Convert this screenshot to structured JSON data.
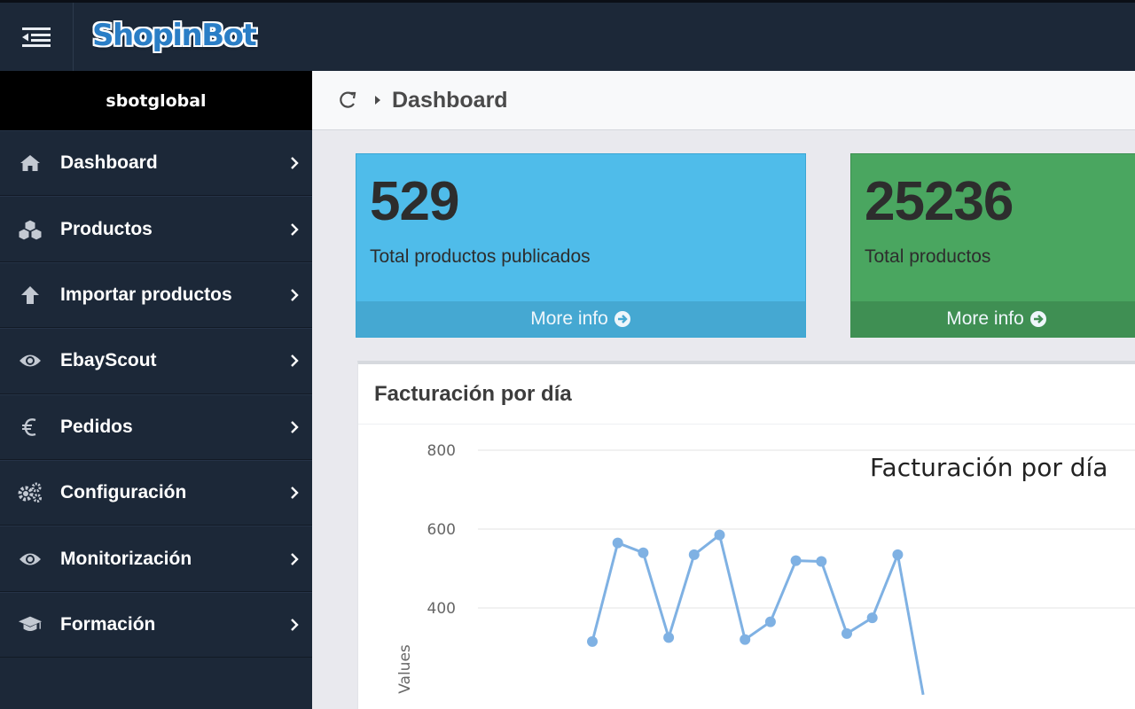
{
  "app": {
    "logo_text": "ShopinBot"
  },
  "user": {
    "name": "sbotglobal"
  },
  "sidebar": {
    "items": [
      {
        "label": "Dashboard",
        "icon": "home-icon"
      },
      {
        "label": "Productos",
        "icon": "cubes-icon"
      },
      {
        "label": "Importar productos",
        "icon": "arrow-up-icon"
      },
      {
        "label": "EbayScout",
        "icon": "eye-icon"
      },
      {
        "label": "Pedidos",
        "icon": "euro-icon"
      },
      {
        "label": "Configuración",
        "icon": "gears-icon"
      },
      {
        "label": "Monitorización",
        "icon": "eye-icon"
      },
      {
        "label": "Formación",
        "icon": "graduation-cap-icon"
      }
    ]
  },
  "breadcrumb": {
    "title": "Dashboard"
  },
  "stats": [
    {
      "value": "529",
      "label": "Total productos publicados",
      "link": "More info",
      "color": "#4fbcea"
    },
    {
      "value": "25236",
      "label": "Total productos",
      "link": "More info",
      "color": "#4aa660"
    }
  ],
  "panel": {
    "title": "Facturación por día"
  },
  "chart_data": {
    "type": "line",
    "title": "Facturación por día",
    "ylabel": "Values",
    "xlabel": "",
    "yticks": [
      800,
      600,
      400
    ],
    "series": [
      {
        "values": [
          315,
          565,
          540,
          325,
          535,
          585,
          320,
          365,
          520,
          518,
          335,
          375,
          535,
          180
        ]
      }
    ],
    "color": "#7fb1e3"
  }
}
